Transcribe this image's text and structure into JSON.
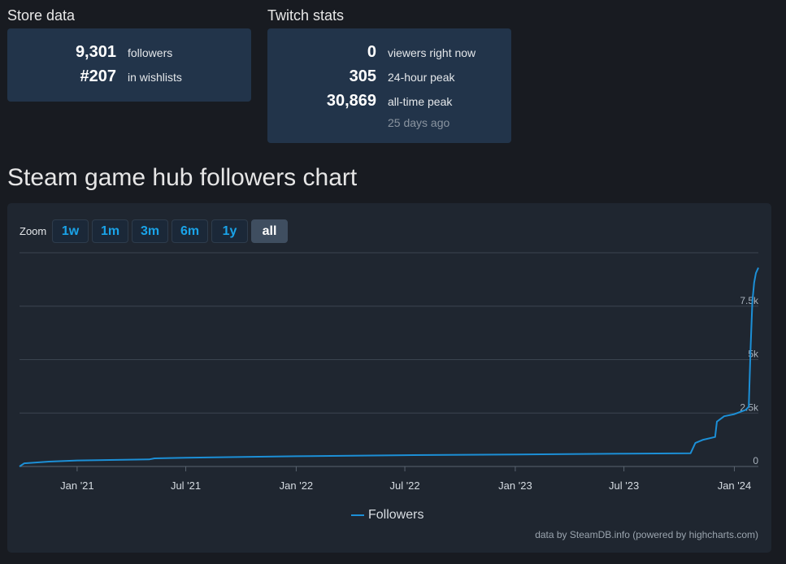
{
  "store": {
    "title": "Store data",
    "stats": [
      {
        "value": "9,301",
        "label": "followers"
      },
      {
        "value": "#207",
        "label": "in wishlists"
      }
    ]
  },
  "twitch": {
    "title": "Twitch stats",
    "stats": [
      {
        "value": "0",
        "label": "viewers right now"
      },
      {
        "value": "305",
        "label": "24-hour peak"
      },
      {
        "value": "30,869",
        "label": "all-time peak"
      }
    ],
    "peak_ago": "25 days ago"
  },
  "chart": {
    "heading": "Steam game hub followers chart",
    "zoom_label": "Zoom",
    "zoom_buttons": [
      "1w",
      "1m",
      "3m",
      "6m",
      "1y",
      "all"
    ],
    "zoom_active": "all",
    "legend": "Followers",
    "credits": "data by SteamDB.info (powered by highcharts.com)"
  },
  "chart_data": {
    "type": "line",
    "title": "Steam game hub followers chart",
    "xlabel": "",
    "ylabel": "",
    "x_ticks": [
      "Jan '21",
      "Jul '21",
      "Jan '22",
      "Jul '22",
      "Jan '23",
      "Jul '23",
      "Jan '24"
    ],
    "y_ticks": [
      "0",
      "2.5k",
      "5k",
      "7.5k"
    ],
    "ylim": [
      0,
      10000
    ],
    "xlim": [
      "2020-09-27",
      "2024-02-10"
    ],
    "grid": true,
    "legend_position": "bottom-center",
    "series": [
      {
        "name": "Followers",
        "color": "#1c8fd6",
        "points": [
          [
            "2020-09-27",
            0
          ],
          [
            "2020-10-05",
            150
          ],
          [
            "2020-11-15",
            230
          ],
          [
            "2021-01-01",
            280
          ],
          [
            "2021-05-01",
            330
          ],
          [
            "2021-05-10",
            380
          ],
          [
            "2021-07-01",
            410
          ],
          [
            "2022-01-01",
            480
          ],
          [
            "2022-07-01",
            530
          ],
          [
            "2023-01-01",
            560
          ],
          [
            "2023-07-01",
            600
          ],
          [
            "2023-10-20",
            620
          ],
          [
            "2023-10-28",
            1100
          ],
          [
            "2023-11-10",
            1250
          ],
          [
            "2023-11-30",
            1380
          ],
          [
            "2023-12-03",
            2100
          ],
          [
            "2023-12-15",
            2350
          ],
          [
            "2024-01-01",
            2450
          ],
          [
            "2024-01-20",
            2650
          ],
          [
            "2024-01-25",
            2800
          ],
          [
            "2024-01-28",
            5500
          ],
          [
            "2024-01-31",
            7700
          ],
          [
            "2024-02-03",
            8600
          ],
          [
            "2024-02-06",
            9050
          ],
          [
            "2024-02-10",
            9301
          ]
        ]
      }
    ]
  }
}
